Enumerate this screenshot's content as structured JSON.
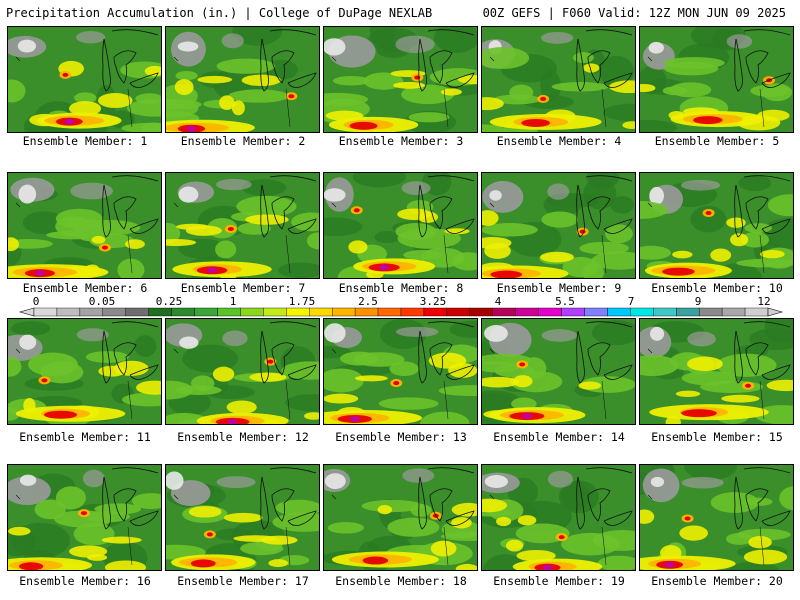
{
  "header": {
    "left_text": "Precipitation Accumulation (in.) | College of DuPage NEXLAB",
    "right_text": "00Z GEFS | F060 Valid: 12Z MON JUN 09 2025"
  },
  "colorbar": {
    "tick_labels": [
      "0",
      "0.05",
      "0.25",
      "1",
      "1.75",
      "2.5",
      "3.25",
      "4",
      "5.5",
      "7",
      "9",
      "12"
    ],
    "colors": [
      "#d9d9d9",
      "#bdbdbd",
      "#a3a3a3",
      "#8a8a8a",
      "#6e6e6e",
      "#1f6e1f",
      "#2c8a2c",
      "#3aa638",
      "#5cc22a",
      "#8bd61f",
      "#c3ea1a",
      "#f5f500",
      "#ffd800",
      "#ffb400",
      "#ff9000",
      "#ff6a00",
      "#ff3a00",
      "#ee0000",
      "#cc0000",
      "#a80000",
      "#b4005a",
      "#cc0099",
      "#e600cc",
      "#b040ff",
      "#7f7fff",
      "#00c8ff",
      "#00e6e6",
      "#40c8c8",
      "#3aa0a0",
      "#8a8a8a",
      "#a8a8a8",
      "#cfcfcf"
    ]
  },
  "members": [
    {
      "label": "Ensemble Member: 1"
    },
    {
      "label": "Ensemble Member: 2"
    },
    {
      "label": "Ensemble Member: 3"
    },
    {
      "label": "Ensemble Member: 4"
    },
    {
      "label": "Ensemble Member: 5"
    },
    {
      "label": "Ensemble Member: 6"
    },
    {
      "label": "Ensemble Member: 7"
    },
    {
      "label": "Ensemble Member: 8"
    },
    {
      "label": "Ensemble Member: 9"
    },
    {
      "label": "Ensemble Member: 10"
    },
    {
      "label": "Ensemble Member: 11"
    },
    {
      "label": "Ensemble Member: 12"
    },
    {
      "label": "Ensemble Member: 13"
    },
    {
      "label": "Ensemble Member: 14"
    },
    {
      "label": "Ensemble Member: 15"
    },
    {
      "label": "Ensemble Member: 16"
    },
    {
      "label": "Ensemble Member: 17"
    },
    {
      "label": "Ensemble Member: 18"
    },
    {
      "label": "Ensemble Member: 19"
    },
    {
      "label": "Ensemble Member: 20"
    }
  ],
  "map_colors": {
    "base_green": "#3a8f2a",
    "dark_green": "#2a7a22",
    "light_green": "#6cc22a",
    "yellow": "#eef000",
    "orange": "#ffb400",
    "red": "#e60000",
    "magenta": "#c000a0",
    "gray": "#9a9a9a",
    "white": "#e8e8e8"
  }
}
